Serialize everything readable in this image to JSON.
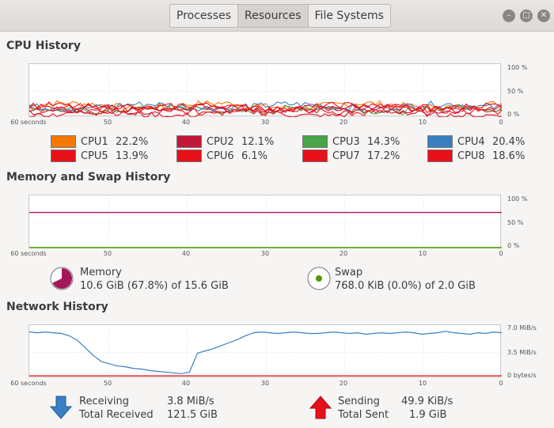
{
  "window": {
    "tabs": [
      {
        "label": "Processes",
        "active": false
      },
      {
        "label": "Resources",
        "active": true
      },
      {
        "label": "File Systems",
        "active": false
      }
    ],
    "controls": [
      "minimize-icon",
      "maximize-icon",
      "close-icon"
    ]
  },
  "cpu": {
    "title": "CPU History",
    "y_ticks": [
      "100 %",
      "50 %",
      "0 %"
    ],
    "x_ticks": [
      "60 seconds",
      "50",
      "40",
      "30",
      "20",
      "10",
      "0"
    ],
    "items": [
      {
        "name": "CPU1",
        "value": "22.2%",
        "color": "#f57900"
      },
      {
        "name": "CPU2",
        "value": "12.1%",
        "color": "#c4163a"
      },
      {
        "name": "CPU3",
        "value": "14.3%",
        "color": "#46a546"
      },
      {
        "name": "CPU4",
        "value": "20.4%",
        "color": "#3a7fc2"
      },
      {
        "name": "CPU5",
        "value": "13.9%",
        "color": "#e8101a"
      },
      {
        "name": "CPU6",
        "value": "6.1%",
        "color": "#e8101a"
      },
      {
        "name": "CPU7",
        "value": "17.2%",
        "color": "#e8101a"
      },
      {
        "name": "CPU8",
        "value": "18.6%",
        "color": "#e8101a"
      }
    ]
  },
  "memory": {
    "title": "Memory and Swap History",
    "y_ticks": [
      "100 %",
      "50 %",
      "0 %"
    ],
    "x_ticks": [
      "60 seconds",
      "50",
      "40",
      "30",
      "20",
      "10",
      "0"
    ],
    "mem_label": "Memory",
    "mem_value": "10.6 GiB (67.8%) of 15.6 GiB",
    "mem_fraction": 0.678,
    "mem_color": "#a3185a",
    "swap_label": "Swap",
    "swap_value": "768.0 KiB (0.0%) of 2.0 GiB",
    "swap_fraction": 0.0,
    "swap_color": "#4e9a06"
  },
  "network": {
    "title": "Network History",
    "y_ticks": [
      "7.0 MiB/s",
      "3.5 MiB/s",
      "0 bytes/s"
    ],
    "x_ticks": [
      "60 seconds",
      "50",
      "40",
      "30",
      "20",
      "10",
      "0"
    ],
    "receiving_label": "Receiving",
    "receiving_value": "3.8 MiB/s",
    "total_received_label": "Total Received",
    "total_received_value": "121.5 GiB",
    "sending_label": "Sending",
    "sending_value": "49.9 KiB/s",
    "total_sent_label": "Total Sent",
    "total_sent_value": "1.9 GiB",
    "receiving_color": "#3a7fc2",
    "sending_color": "#e8101a"
  }
}
